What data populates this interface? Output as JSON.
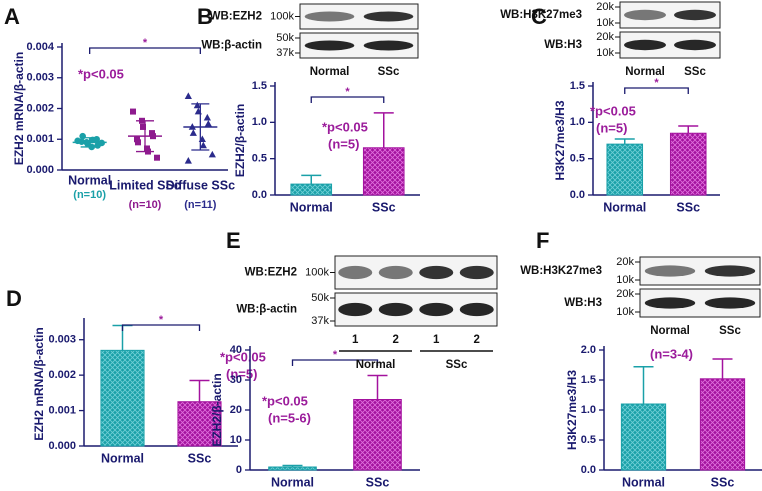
{
  "chart_data": [
    {
      "panel": "A",
      "type": "strip",
      "ylabel": "EZH2 mRNA/β-actin",
      "categories": [
        "Normal",
        "Limited SSc",
        "Diffuse SSc"
      ],
      "category_notes": [
        "(n=10)",
        "(n=10)",
        "(n=11)"
      ],
      "colors": [
        "#1aa0a8",
        "#8e1a8e",
        "#2b2b8c"
      ],
      "points": [
        [
          0.00095,
          0.0009,
          0.00085,
          0.001,
          0.0008,
          0.00092,
          0.0011,
          0.00075,
          0.00098,
          0.00088
        ],
        [
          0.0019,
          0.0016,
          0.0014,
          0.0012,
          0.0011,
          0.001,
          0.0009,
          0.0007,
          0.0006,
          0.0004
        ],
        [
          0.0024,
          0.0021,
          0.0019,
          0.0017,
          0.0015,
          0.0014,
          0.0012,
          0.001,
          0.0008,
          0.0005,
          0.0003
        ]
      ],
      "means": [
        0.0009,
        0.0011,
        0.0014
      ],
      "errors": [
        0.00015,
        0.0005,
        0.00075
      ],
      "ylim": [
        0,
        0.004
      ],
      "yticks": [
        {
          "value": 0,
          "label": "0.000"
        },
        0.001,
        0.002,
        0.003,
        0.004
      ],
      "significance": "*",
      "annotation": [
        "*p<0.05"
      ]
    },
    {
      "panel": "B",
      "type": "bar",
      "ylabel": "EZH2/β-actin",
      "categories": [
        "Normal",
        "SSc"
      ],
      "colors": [
        "#1aa0a8",
        "#a3129e"
      ],
      "values": [
        0.15,
        0.65
      ],
      "errors": [
        0.12,
        0.48
      ],
      "ylim": [
        0,
        1.5
      ],
      "yticks": [
        {
          "value": 0,
          "label": "0.0"
        },
        0.5,
        {
          "value": 1,
          "label": "1.0"
        },
        1.5
      ],
      "significance": "*",
      "annotation": [
        "*p<0.05",
        "(n=5)"
      ],
      "blot": {
        "rows": [
          {
            "label": "WB:EZH2",
            "markers": [
              "100k"
            ]
          },
          {
            "label": "WB:β-actin",
            "markers": [
              "50k",
              "37k"
            ]
          }
        ],
        "lanes": [
          "Normal",
          "SSc"
        ]
      }
    },
    {
      "panel": "C",
      "type": "bar",
      "ylabel": "H3K27me3/H3",
      "categories": [
        "Normal",
        "SSc"
      ],
      "colors": [
        "#1aa0a8",
        "#a3129e"
      ],
      "values": [
        0.7,
        0.85
      ],
      "errors": [
        0.07,
        0.1
      ],
      "ylim": [
        0,
        1.5
      ],
      "yticks": [
        {
          "value": 0,
          "label": "0.0"
        },
        0.5,
        {
          "value": 1,
          "label": "1.0"
        },
        1.5
      ],
      "significance": "*",
      "annotation": [
        "*p<0.05",
        "(n=5)"
      ],
      "blot": {
        "rows": [
          {
            "label": "WB:H3K27me3",
            "markers": [
              "20k",
              "10k"
            ]
          },
          {
            "label": "WB:H3",
            "markers": [
              "20k",
              "10k"
            ]
          }
        ],
        "lanes": [
          "Normal",
          "SSc"
        ]
      }
    },
    {
      "panel": "D",
      "type": "bar",
      "ylabel": "EZH2 mRNA/β-actin",
      "categories": [
        "Normal",
        "SSc"
      ],
      "colors": [
        "#1aa0a8",
        "#a3129e"
      ],
      "values": [
        0.0027,
        0.00125
      ],
      "errors": [
        0.0007,
        0.0006
      ],
      "ylim": [
        0,
        0.0035
      ],
      "yticks": [
        {
          "value": 0,
          "label": "0.000"
        },
        0.001,
        0.002,
        0.003
      ],
      "significance": "*",
      "annotation": [
        "*p<0.05",
        "(n=5)"
      ]
    },
    {
      "panel": "E",
      "type": "bar",
      "ylabel": "EZH2/β-actin",
      "categories": [
        "Normal",
        "SSc"
      ],
      "colors": [
        "#1aa0a8",
        "#a3129e"
      ],
      "values": [
        1,
        23.5
      ],
      "errors": [
        0.5,
        8
      ],
      "ylim": [
        0,
        40
      ],
      "yticks": [
        0,
        10,
        20,
        30,
        40
      ],
      "significance": "*",
      "annotation": [
        "*p<0.05",
        "(n=5-6)"
      ],
      "blot": {
        "rows": [
          {
            "label": "WB:EZH2",
            "markers": [
              "100k"
            ]
          },
          {
            "label": "WB:β-actin",
            "markers": [
              "50k",
              "37k"
            ]
          }
        ],
        "lanes": [
          "1",
          "2",
          "1",
          "2"
        ],
        "groups": [
          "Normal",
          "SSc"
        ]
      }
    },
    {
      "panel": "F",
      "type": "bar",
      "ylabel": "H3K27me3/H3",
      "categories": [
        "Normal",
        "SSc"
      ],
      "colors": [
        "#1aa0a8",
        "#a3129e"
      ],
      "values": [
        1.1,
        1.52
      ],
      "errors": [
        0.62,
        0.33
      ],
      "ylim": [
        0,
        2
      ],
      "yticks": [
        {
          "value": 0,
          "label": "0.0"
        },
        0.5,
        {
          "value": 1,
          "label": "1.0"
        },
        1.5,
        {
          "value": 2,
          "label": "2.0"
        }
      ],
      "annotation": [
        "(n=3-4)"
      ],
      "blot": {
        "rows": [
          {
            "label": "WB:H3K27me3",
            "markers": [
              "20k",
              "10k"
            ]
          },
          {
            "label": "WB:H3",
            "markers": [
              "20k",
              "10k"
            ]
          }
        ],
        "lanes": [
          "Normal",
          "SSc"
        ]
      }
    }
  ]
}
